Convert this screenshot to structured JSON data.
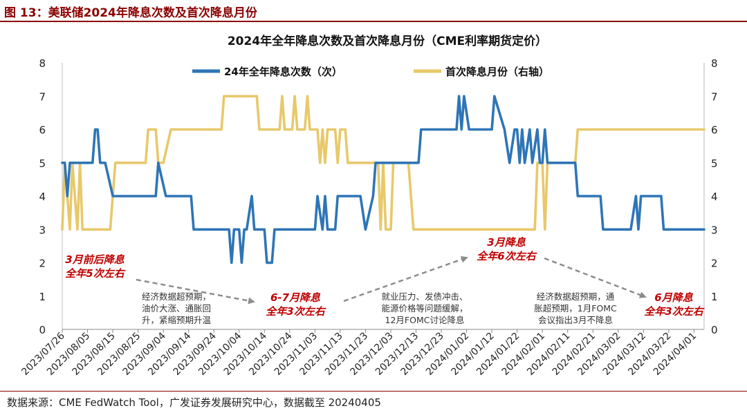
{
  "figure_caption": "图 13：美联储2024年降息次数及首次降息月份",
  "source": "数据来源：CME FedWatch Tool，广发证券发展研究中心，数据截至 20240405",
  "colors": {
    "series1": "#2E75B6",
    "series2": "#E8C86A",
    "annotation_red": "#C00000",
    "arrow": "#8C8C8C"
  },
  "chart_data": {
    "type": "line",
    "title": "2024年全年降息次数及首次降息月份（CME利率期货定价）",
    "ylim": [
      0,
      8
    ],
    "y2lim": [
      0,
      8
    ],
    "yticks": [
      0,
      1,
      2,
      3,
      4,
      5,
      6,
      7,
      8
    ],
    "y2ticks": [
      0,
      1,
      2,
      3,
      4,
      5,
      6,
      7,
      8
    ],
    "x_range": [
      "2023-07-26",
      "2024-04-05"
    ],
    "xticks": [
      "2023/07/26",
      "2023/08/05",
      "2023/08/15",
      "2023/08/25",
      "2023/09/04",
      "2023/09/14",
      "2023/09/24",
      "2023/10/04",
      "2023/10/14",
      "2023/10/24",
      "2023/11/03",
      "2023/11/13",
      "2023/11/23",
      "2023/12/03",
      "2023/12/13",
      "2023/12/23",
      "2024/01/02",
      "2024/01/12",
      "2024/01/22",
      "2024/02/01",
      "2024/02/11",
      "2024/02/21",
      "2024/03/02",
      "2024/03/12",
      "2024/03/22",
      "2024/04/01"
    ],
    "legend_placement": "top",
    "series": [
      {
        "name": "24年全年降息次数（次）",
        "axis": "left",
        "points": [
          [
            "2023-07-26",
            5
          ],
          [
            "2023-07-27",
            5
          ],
          [
            "2023-07-28",
            4
          ],
          [
            "2023-07-29",
            5
          ],
          [
            "2023-08-07",
            5
          ],
          [
            "2023-08-08",
            6
          ],
          [
            "2023-08-09",
            6
          ],
          [
            "2023-08-10",
            5
          ],
          [
            "2023-08-12",
            5
          ],
          [
            "2023-08-15",
            4
          ],
          [
            "2023-09-01",
            4
          ],
          [
            "2023-09-02",
            5
          ],
          [
            "2023-09-05",
            4
          ],
          [
            "2023-09-06",
            4
          ],
          [
            "2023-09-15",
            4
          ],
          [
            "2023-09-16",
            3
          ],
          [
            "2023-09-30",
            3
          ],
          [
            "2023-10-01",
            2
          ],
          [
            "2023-10-02",
            3
          ],
          [
            "2023-10-04",
            3
          ],
          [
            "2023-10-05",
            2
          ],
          [
            "2023-10-06",
            3
          ],
          [
            "2023-10-07",
            3
          ],
          [
            "2023-10-09",
            4
          ],
          [
            "2023-10-10",
            3
          ],
          [
            "2023-10-14",
            3
          ],
          [
            "2023-10-15",
            2
          ],
          [
            "2023-10-17",
            2
          ],
          [
            "2023-10-18",
            3
          ],
          [
            "2023-11-03",
            3
          ],
          [
            "2023-11-04",
            4
          ],
          [
            "2023-11-06",
            3
          ],
          [
            "2023-11-07",
            4
          ],
          [
            "2023-11-08",
            3
          ],
          [
            "2023-11-11",
            3
          ],
          [
            "2023-11-12",
            4
          ],
          [
            "2023-11-21",
            4
          ],
          [
            "2023-11-23",
            3
          ],
          [
            "2023-11-26",
            4
          ],
          [
            "2023-11-27",
            5
          ],
          [
            "2023-12-14",
            5
          ],
          [
            "2023-12-15",
            6
          ],
          [
            "2023-12-29",
            6
          ],
          [
            "2023-12-30",
            7
          ],
          [
            "2023-12-31",
            6
          ],
          [
            "2024-01-01",
            7
          ],
          [
            "2024-01-03",
            6
          ],
          [
            "2024-01-12",
            6
          ],
          [
            "2024-01-13",
            7
          ],
          [
            "2024-01-17",
            6
          ],
          [
            "2024-01-19",
            5
          ],
          [
            "2024-01-21",
            6
          ],
          [
            "2024-01-22",
            6
          ],
          [
            "2024-01-23",
            5
          ],
          [
            "2024-01-24",
            6
          ],
          [
            "2024-01-25",
            5
          ],
          [
            "2024-01-27",
            6
          ],
          [
            "2024-01-28",
            5
          ],
          [
            "2024-01-30",
            6
          ],
          [
            "2024-01-31",
            5
          ],
          [
            "2024-02-01",
            5
          ],
          [
            "2024-02-02",
            6
          ],
          [
            "2024-02-03",
            5
          ],
          [
            "2024-02-14",
            5
          ],
          [
            "2024-02-15",
            4
          ],
          [
            "2024-02-24",
            4
          ],
          [
            "2024-02-25",
            3
          ],
          [
            "2024-03-07",
            3
          ],
          [
            "2024-03-09",
            4
          ],
          [
            "2024-03-10",
            3
          ],
          [
            "2024-03-11",
            4
          ],
          [
            "2024-03-19",
            4
          ],
          [
            "2024-03-20",
            3
          ],
          [
            "2024-04-05",
            3
          ]
        ]
      },
      {
        "name": "首次降息月份（右轴）",
        "axis": "right",
        "points": [
          [
            "2023-07-26",
            3
          ],
          [
            "2023-07-27",
            5
          ],
          [
            "2023-07-29",
            3
          ],
          [
            "2023-07-30",
            5
          ],
          [
            "2023-08-01",
            3
          ],
          [
            "2023-08-02",
            5
          ],
          [
            "2023-08-03",
            3
          ],
          [
            "2023-08-14",
            3
          ],
          [
            "2023-08-16",
            5
          ],
          [
            "2023-08-28",
            5
          ],
          [
            "2023-08-29",
            6
          ],
          [
            "2023-09-01",
            6
          ],
          [
            "2023-09-02",
            5
          ],
          [
            "2023-09-04",
            5
          ],
          [
            "2023-09-07",
            6
          ],
          [
            "2023-09-27",
            6
          ],
          [
            "2023-09-28",
            7
          ],
          [
            "2023-10-11",
            7
          ],
          [
            "2023-10-12",
            6
          ],
          [
            "2023-10-20",
            6
          ],
          [
            "2023-10-21",
            7
          ],
          [
            "2023-10-22",
            6
          ],
          [
            "2023-10-25",
            6
          ],
          [
            "2023-10-26",
            7
          ],
          [
            "2023-10-27",
            6
          ],
          [
            "2023-10-30",
            6
          ],
          [
            "2023-10-31",
            7
          ],
          [
            "2023-11-01",
            6
          ],
          [
            "2023-11-04",
            6
          ],
          [
            "2023-11-05",
            5
          ],
          [
            "2023-11-06",
            6
          ],
          [
            "2023-11-07",
            5
          ],
          [
            "2023-11-08",
            6
          ],
          [
            "2023-11-11",
            6
          ],
          [
            "2023-11-12",
            5
          ],
          [
            "2023-11-13",
            6
          ],
          [
            "2023-11-15",
            6
          ],
          [
            "2023-11-16",
            5
          ],
          [
            "2023-11-28",
            5
          ],
          [
            "2023-11-29",
            3
          ],
          [
            "2023-11-30",
            5
          ],
          [
            "2023-12-01",
            3
          ],
          [
            "2023-12-03",
            3
          ],
          [
            "2023-12-04",
            5
          ],
          [
            "2023-12-10",
            5
          ],
          [
            "2023-12-12",
            3
          ],
          [
            "2024-01-29",
            3
          ],
          [
            "2024-01-30",
            5
          ],
          [
            "2024-02-01",
            5
          ],
          [
            "2024-02-02",
            3
          ],
          [
            "2024-02-03",
            5
          ],
          [
            "2024-02-14",
            5
          ],
          [
            "2024-02-15",
            6
          ],
          [
            "2024-04-05",
            6
          ]
        ]
      }
    ],
    "annotations": [
      {
        "lines": [
          "3月前后降息",
          "全年5次左右"
        ]
      },
      {
        "lines": [
          "经济数据超预期，",
          "油价大涨、通胀回",
          "升，紧缩预期升温"
        ]
      },
      {
        "lines": [
          "6-7月降息",
          "全年3次左右"
        ]
      },
      {
        "lines": [
          "就业压力、发债冲击、",
          "能源价格等问题缓解，",
          "12月FOMC讨论降息"
        ]
      },
      {
        "lines": [
          "3月降息",
          "全年6次左右"
        ]
      },
      {
        "lines": [
          "经济数据超预期，通",
          "胀超预期，1月FOMC",
          "会议指出3月不降息"
        ]
      },
      {
        "lines": [
          "6月降息",
          "全年3次左右"
        ]
      }
    ]
  }
}
